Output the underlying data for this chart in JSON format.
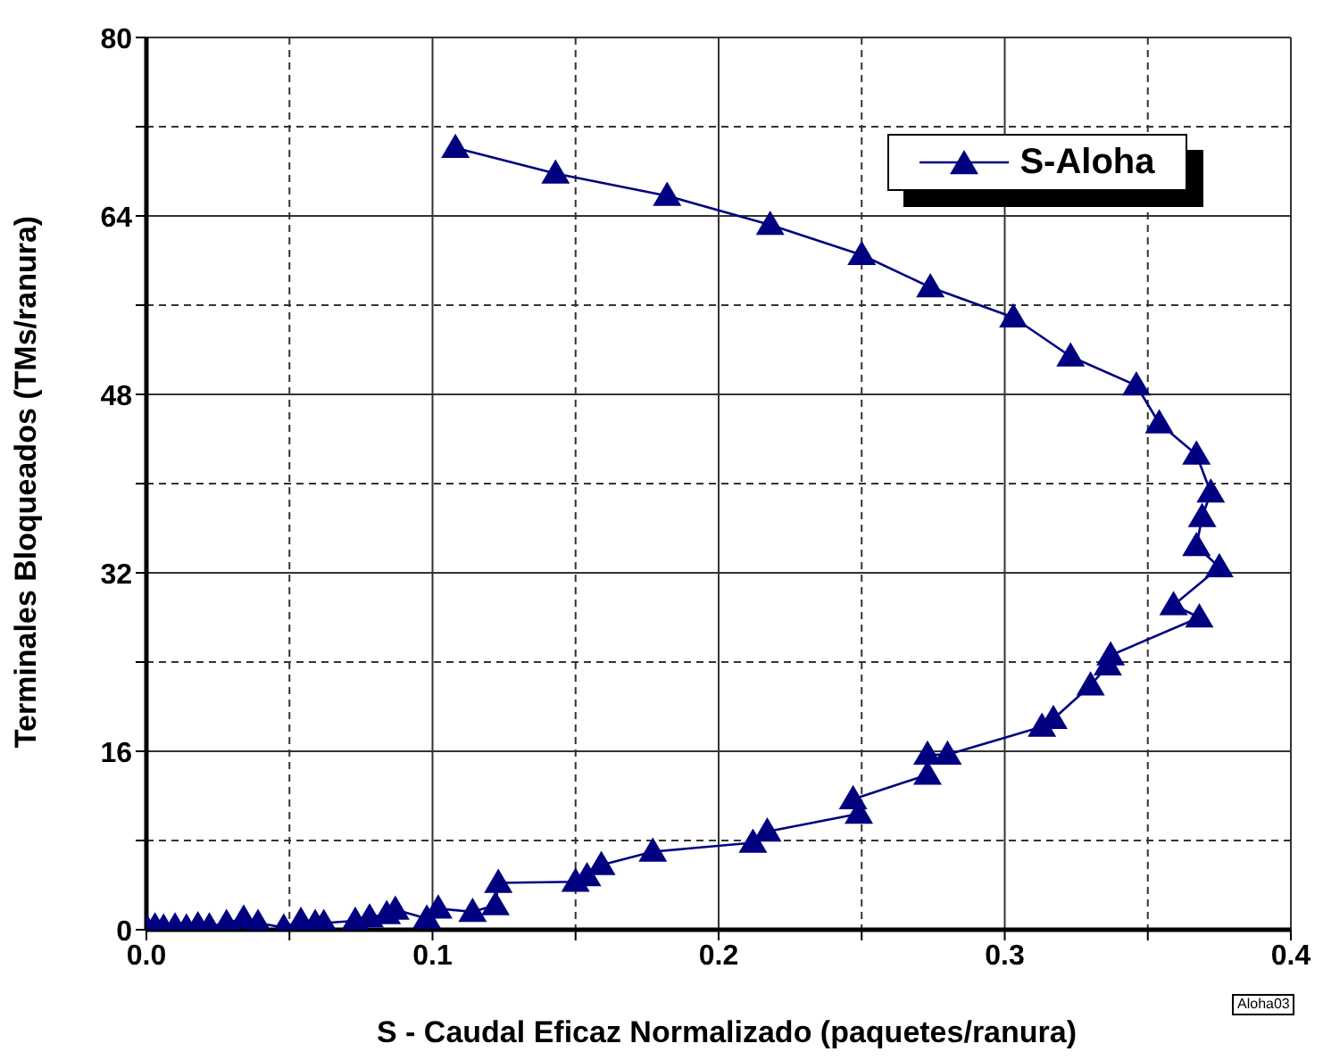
{
  "chart_data": {
    "type": "line",
    "xlabel": "S - Caudal Eficaz Normalizado (paquetes/ranura)",
    "ylabel": "Terminales Bloqueados (TMs/ranura)",
    "xlim": [
      0,
      0.4
    ],
    "xticks": [
      {
        "value": 0,
        "label": "0.0"
      },
      {
        "value": 0.05,
        "label": null
      },
      {
        "value": 0.1,
        "label": "0.1"
      },
      {
        "value": 0.15,
        "label": null
      },
      {
        "value": 0.2,
        "label": "0.2"
      },
      {
        "value": 0.25,
        "label": null
      },
      {
        "value": 0.3,
        "label": "0.3"
      },
      {
        "value": 0.35,
        "label": null
      },
      {
        "value": 0.4,
        "label": "0.4"
      }
    ],
    "ylim": [
      0,
      80
    ],
    "yticks": [
      0,
      {
        "value": 8,
        "label": null
      },
      16,
      {
        "value": 24,
        "label": null
      },
      32,
      {
        "value": 40,
        "label": null
      },
      48,
      {
        "value": 56,
        "label": null
      },
      64,
      {
        "value": 72,
        "label": null
      },
      80
    ],
    "grid": true,
    "legend": "top right",
    "marker": "triangle",
    "line_style": "solid",
    "annotations": [
      "Aloha03"
    ],
    "series": [
      {
        "name": "S-Aloha",
        "color": "#000080",
        "x": [
          0.0,
          0.003,
          0.006,
          0.01,
          0.014,
          0.018,
          0.022,
          0.028,
          0.034,
          0.039,
          0.048,
          0.054,
          0.059,
          0.062,
          0.073,
          0.078,
          0.084,
          0.087,
          0.098,
          0.102,
          0.114,
          0.122,
          0.123,
          0.15,
          0.154,
          0.159,
          0.177,
          0.212,
          0.217,
          0.249,
          0.247,
          0.273,
          0.273,
          0.28,
          0.313,
          0.317,
          0.33,
          0.336,
          0.337,
          0.368,
          0.359,
          0.375,
          0.367,
          0.369,
          0.372,
          0.367,
          0.354,
          0.346,
          0.323,
          0.303,
          0.274,
          0.25,
          0.218,
          0.182,
          0.143,
          0.108
        ],
        "values": [
          0.2,
          0.3,
          0.2,
          0.3,
          0.2,
          0.4,
          0.3,
          0.6,
          1.0,
          0.6,
          0.2,
          0.8,
          0.6,
          0.6,
          0.8,
          1.1,
          1.4,
          1.8,
          1.0,
          1.9,
          1.6,
          2.2,
          4.2,
          4.3,
          4.8,
          5.8,
          7.0,
          7.8,
          8.8,
          10.4,
          11.7,
          13.9,
          15.7,
          15.7,
          18.2,
          18.9,
          21.9,
          23.7,
          24.6,
          28.0,
          29.1,
          32.5,
          34.4,
          37.0,
          39.2,
          42.6,
          45.4,
          48.8,
          51.4,
          54.9,
          57.6,
          60.5,
          63.2,
          65.8,
          67.8,
          70.1
        ]
      }
    ]
  }
}
